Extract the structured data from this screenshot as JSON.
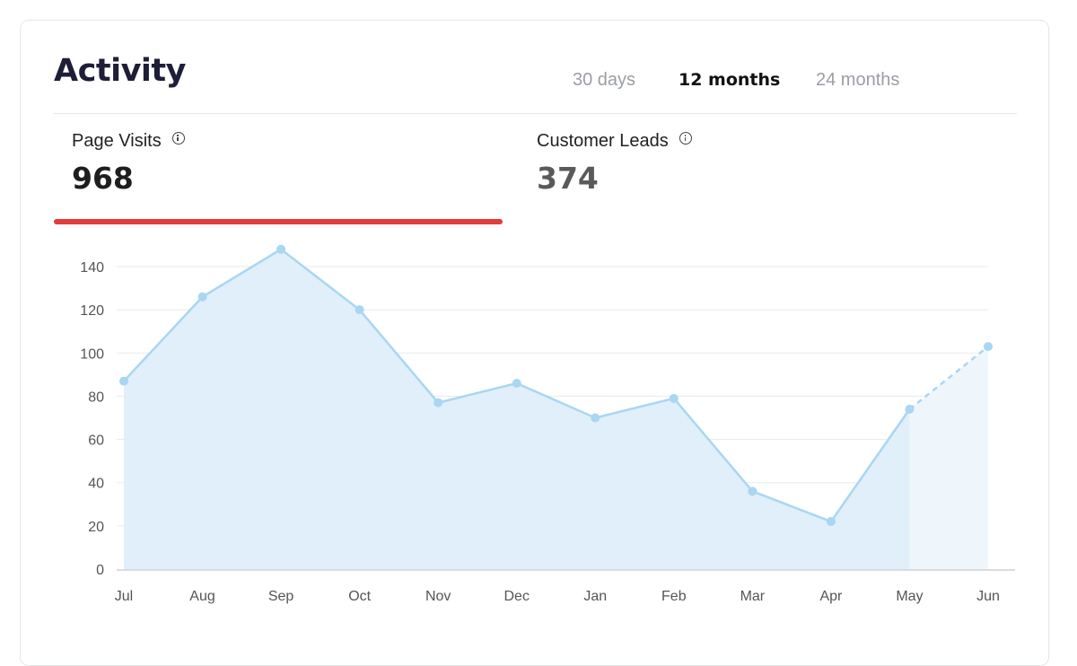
{
  "header": {
    "title": "Activity",
    "range_tabs": [
      {
        "label": "30 days",
        "active": false
      },
      {
        "label": "12 months",
        "active": true
      },
      {
        "label": "24 months",
        "active": false
      }
    ]
  },
  "metrics": [
    {
      "label": "Page Visits",
      "value": "968",
      "active": true
    },
    {
      "label": "Customer Leads",
      "value": "374",
      "active": false
    }
  ],
  "colors": {
    "accent_underline": "#e13b3b",
    "line": "#a9d6f2",
    "area": "#e0eff9",
    "area_projected": "#eef6fc"
  },
  "chart_data": {
    "type": "area",
    "categories": [
      "Jul",
      "Aug",
      "Sep",
      "Oct",
      "Nov",
      "Dec",
      "Jan",
      "Feb",
      "Mar",
      "Apr",
      "May",
      "Jun"
    ],
    "series": [
      {
        "values": [
          87,
          126,
          148,
          120,
          77,
          86,
          70,
          79,
          36,
          22,
          74,
          103
        ],
        "projected_from_index": 10
      }
    ],
    "ylim": [
      0,
      140
    ],
    "yticks": [
      0,
      20,
      40,
      60,
      80,
      100,
      120,
      140
    ],
    "xlabel": "",
    "ylabel": "",
    "grid": true
  }
}
